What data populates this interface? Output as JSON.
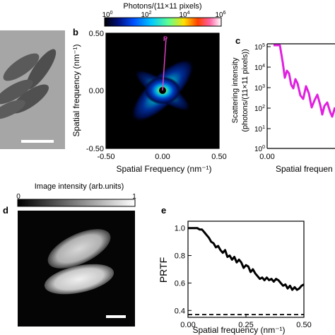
{
  "panels": {
    "b": {
      "letter": "b"
    },
    "c": {
      "letter": "c"
    },
    "d": {
      "letter": "d"
    },
    "e": {
      "letter": "e"
    }
  },
  "colorbar_b": {
    "title": "Photons/(11×11 pixels)",
    "ticks": [
      "10",
      "10",
      "10",
      "10"
    ],
    "exponents": [
      "0",
      "2",
      "4",
      "6"
    ],
    "colors": [
      "#000000",
      "#001080",
      "#0050ff",
      "#00c8ff",
      "#60ff90",
      "#ffe000",
      "#ff4000",
      "#ff60a0",
      "#ffffff"
    ]
  },
  "panel_b": {
    "ylabel": "Spatial frequency (nm⁻¹)",
    "xlabel": "Spatial Frequency (nm⁻¹)",
    "xticks": [
      "-0.50",
      "0.00",
      "0.50"
    ],
    "yticks": [
      "0.50",
      "0.00",
      "-0.50"
    ],
    "marker": "P",
    "marker_color": "#e040c0"
  },
  "panel_c": {
    "ylabel_line1": "Scattering intensity",
    "ylabel_line2": "(photons/(11×11 pixels))",
    "xlabel": "Spatial frequen",
    "xticks": [
      "0.00"
    ],
    "yticks_base": [
      "10",
      "10",
      "10",
      "10",
      "10",
      "10"
    ],
    "yticks_exp": [
      "5",
      "4",
      "3",
      "2",
      "1",
      "0"
    ],
    "line_color": "#e020e0"
  },
  "colorbar_d": {
    "title": "Image intensity (arb.units)",
    "ticks": [
      "0",
      "1"
    ]
  },
  "chart_data": [
    {
      "type": "line",
      "panel": "e",
      "ylabel": "PRTF",
      "xlabel": "Spatial frequency (nm⁻¹)",
      "xticks": [
        "0.00",
        "0.25",
        "0.50"
      ],
      "yticks": [
        "1.0",
        "0.8",
        "0.6",
        "0.4"
      ],
      "xlim": [
        0,
        0.5
      ],
      "ylim": [
        0.35,
        1.05
      ],
      "series": [
        {
          "style": "solid",
          "x": [
            0.0,
            0.02,
            0.04,
            0.05,
            0.06,
            0.07,
            0.08,
            0.09,
            0.1,
            0.11,
            0.12,
            0.13,
            0.14,
            0.15,
            0.16,
            0.17,
            0.18,
            0.19,
            0.2,
            0.21,
            0.22,
            0.23,
            0.24,
            0.25,
            0.26,
            0.27,
            0.28,
            0.29,
            0.3,
            0.31,
            0.32,
            0.33,
            0.34,
            0.35,
            0.36,
            0.37,
            0.38,
            0.39,
            0.4,
            0.41,
            0.42,
            0.43,
            0.44,
            0.45,
            0.46,
            0.47,
            0.48,
            0.49,
            0.5
          ],
          "y": [
            1.0,
            1.0,
            1.0,
            0.99,
            0.99,
            0.97,
            0.95,
            0.93,
            0.9,
            0.89,
            0.86,
            0.87,
            0.84,
            0.82,
            0.84,
            0.79,
            0.8,
            0.77,
            0.79,
            0.75,
            0.77,
            0.75,
            0.71,
            0.73,
            0.72,
            0.68,
            0.7,
            0.67,
            0.65,
            0.63,
            0.64,
            0.62,
            0.64,
            0.62,
            0.63,
            0.61,
            0.63,
            0.62,
            0.6,
            0.58,
            0.59,
            0.56,
            0.58,
            0.55,
            0.57,
            0.55,
            0.56,
            0.58,
            0.59
          ]
        },
        {
          "style": "dashed",
          "x": [
            0.0,
            0.5
          ],
          "y": [
            0.37,
            0.37
          ]
        }
      ]
    }
  ]
}
